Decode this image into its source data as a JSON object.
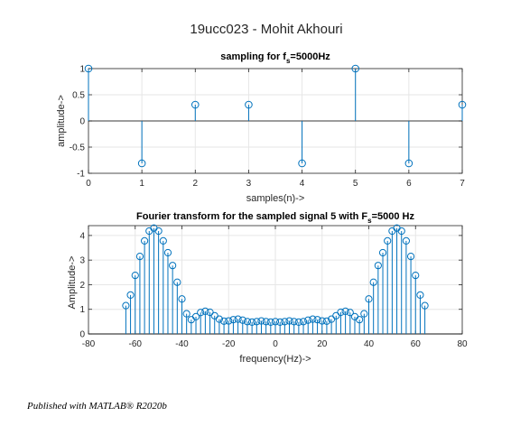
{
  "figure": {
    "suptitle": "19ucc023 - Mohit Akhouri",
    "footer": "Published with MATLAB® R2020b"
  },
  "colors": {
    "stem": "#0072bd",
    "grid": "#e6e6e6",
    "axis": "#262626",
    "text": "#262626"
  },
  "chart_data": [
    {
      "type": "scatter",
      "subtype": "stem",
      "title_main": "sampling for f",
      "title_sub": "s",
      "title_tail": "=5000Hz",
      "xlabel": "samples(n)->",
      "ylabel": "amplitude->",
      "xlim": [
        0,
        7
      ],
      "ylim": [
        -1,
        1
      ],
      "xticks": [
        0,
        1,
        2,
        3,
        4,
        5,
        6,
        7
      ],
      "yticks": [
        -1,
        -0.5,
        0,
        0.5,
        1
      ],
      "grid": true,
      "x": [
        0,
        1,
        2,
        3,
        4,
        5,
        6,
        7
      ],
      "y": [
        1,
        -0.81,
        0.31,
        0.31,
        -0.81,
        1,
        -0.81,
        0.31
      ]
    },
    {
      "type": "scatter",
      "subtype": "stem",
      "title_main": "Fourier transform for the sampled signal 5 with F",
      "title_sub": "s",
      "title_tail": "=5000 Hz",
      "xlabel": "frequency(Hz)->",
      "ylabel": "Amplitude->",
      "xlim": [
        -80,
        80
      ],
      "ylim": [
        0,
        4.4
      ],
      "xticks": [
        -80,
        -60,
        -40,
        -20,
        0,
        20,
        40,
        60,
        80
      ],
      "yticks": [
        0,
        1,
        2,
        3,
        4
      ],
      "grid": true,
      "x": [
        -64,
        -62,
        -60,
        -58,
        -56,
        -54,
        -52,
        -50,
        -48,
        -46,
        -44,
        -42,
        -40,
        -38,
        -36,
        -34,
        -32,
        -30,
        -28,
        -26,
        -24,
        -22,
        -20,
        -18,
        -16,
        -14,
        -12,
        -10,
        -8,
        -6,
        -4,
        -2,
        0,
        2,
        4,
        6,
        8,
        10,
        12,
        14,
        16,
        18,
        20,
        22,
        24,
        26,
        28,
        30,
        32,
        34,
        36,
        38,
        40,
        42,
        44,
        46,
        48,
        50,
        52,
        54,
        56,
        58,
        60,
        62,
        64
      ],
      "y": [
        1.15,
        1.58,
        2.38,
        3.15,
        3.78,
        4.18,
        4.3,
        4.18,
        3.78,
        3.3,
        2.78,
        2.1,
        1.42,
        0.82,
        0.58,
        0.7,
        0.87,
        0.92,
        0.88,
        0.74,
        0.6,
        0.52,
        0.53,
        0.58,
        0.6,
        0.56,
        0.5,
        0.48,
        0.5,
        0.53,
        0.5,
        0.48,
        0.5,
        0.48,
        0.5,
        0.53,
        0.5,
        0.48,
        0.5,
        0.56,
        0.6,
        0.58,
        0.53,
        0.52,
        0.6,
        0.74,
        0.88,
        0.92,
        0.87,
        0.7,
        0.58,
        0.82,
        1.42,
        2.1,
        2.78,
        3.3,
        3.78,
        4.18,
        4.3,
        4.18,
        3.78,
        3.15,
        2.38,
        1.58,
        1.15
      ]
    }
  ]
}
